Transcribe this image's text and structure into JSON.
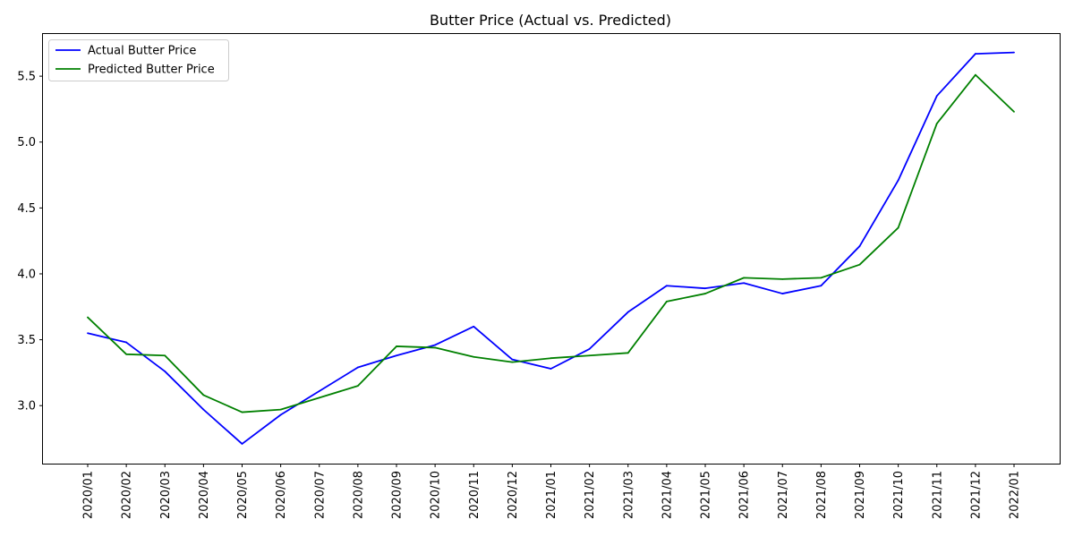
{
  "chart_data": {
    "type": "line",
    "title": "Butter Price (Actual vs. Predicted)",
    "xlabel": "",
    "ylabel": "",
    "categories": [
      "2020/01",
      "2020/02",
      "2020/03",
      "2020/04",
      "2020/05",
      "2020/06",
      "2020/07",
      "2020/08",
      "2020/09",
      "2020/10",
      "2020/11",
      "2020/12",
      "2021/01",
      "2021/02",
      "2021/03",
      "2021/04",
      "2021/05",
      "2021/06",
      "2021/07",
      "2021/08",
      "2021/09",
      "2021/10",
      "2021/11",
      "2021/12",
      "2022/01"
    ],
    "series": [
      {
        "name": "Actual Butter Price",
        "color": "#0000ff",
        "values": [
          3.55,
          3.48,
          3.26,
          2.97,
          2.71,
          2.93,
          3.11,
          3.29,
          3.38,
          3.46,
          3.6,
          3.35,
          3.28,
          3.43,
          3.71,
          3.91,
          3.89,
          3.93,
          3.85,
          3.91,
          4.21,
          4.71,
          5.35,
          5.67,
          5.68
        ]
      },
      {
        "name": "Predicted Butter Price",
        "color": "#008000",
        "values": [
          3.67,
          3.39,
          3.38,
          3.08,
          2.95,
          2.97,
          3.06,
          3.15,
          3.45,
          3.44,
          3.37,
          3.33,
          3.36,
          3.38,
          3.4,
          3.79,
          3.85,
          3.97,
          3.96,
          3.97,
          4.07,
          4.35,
          5.14,
          5.51,
          5.23
        ]
      }
    ],
    "ylim": [
      2.56,
      5.82
    ],
    "yticks": [
      "3.0",
      "3.5",
      "4.0",
      "4.5",
      "5.0",
      "5.5"
    ],
    "grid": false,
    "legend_position": "upper-left"
  }
}
